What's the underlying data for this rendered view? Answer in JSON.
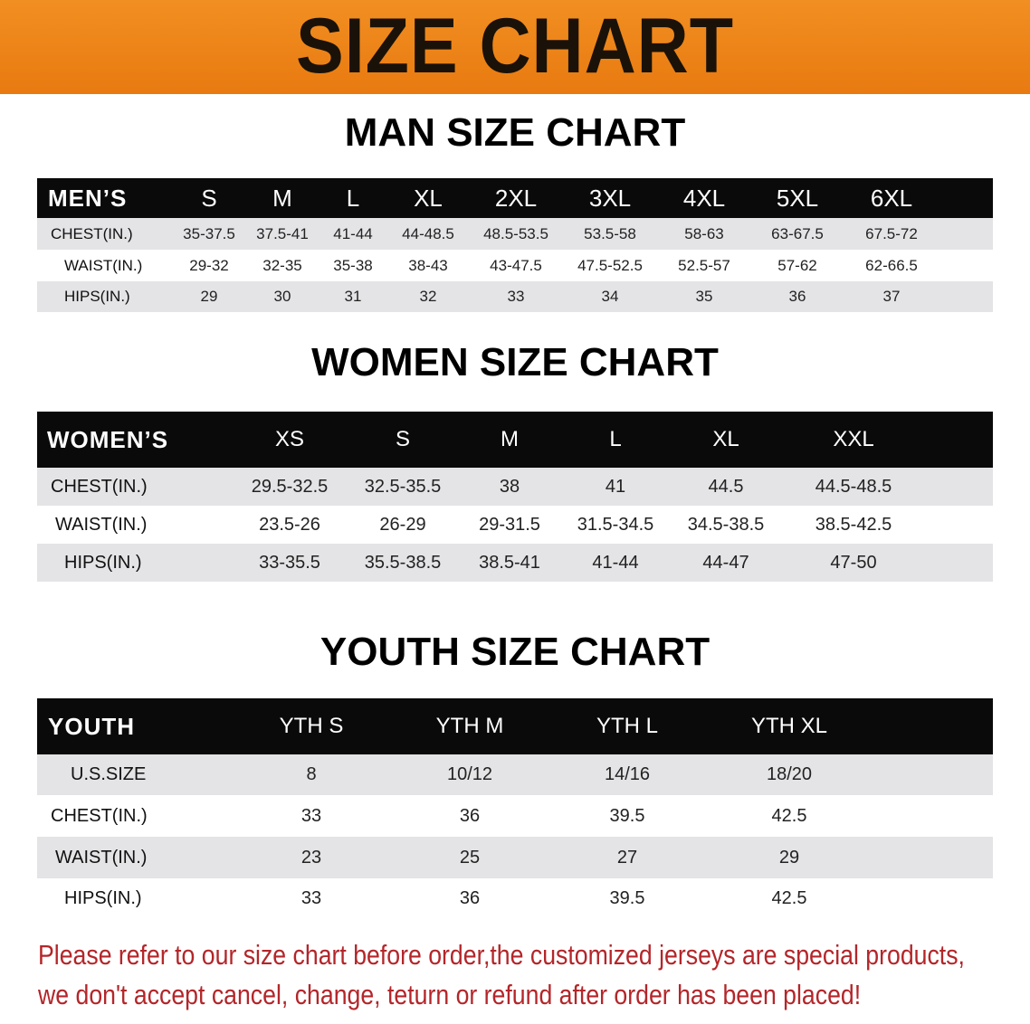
{
  "banner": {
    "title": "SIZE CHART"
  },
  "men": {
    "title": "MAN SIZE CHART",
    "header": [
      "MEN’S",
      "S",
      "M",
      "L",
      "XL",
      "2XL",
      "3XL",
      "4XL",
      "5XL",
      "6XL"
    ],
    "rows": [
      [
        "CHEST(IN.)",
        "35-37.5",
        "37.5-41",
        "41-44",
        "44-48.5",
        "48.5-53.5",
        "53.5-58",
        "58-63",
        "63-67.5",
        "67.5-72"
      ],
      [
        "WAIST(IN.)",
        "29-32",
        "32-35",
        "35-38",
        "38-43",
        "43-47.5",
        "47.5-52.5",
        "52.5-57",
        "57-62",
        "62-66.5"
      ],
      [
        "HIPS(IN.)",
        "29",
        "30",
        "31",
        "32",
        "33",
        "34",
        "35",
        "36",
        "37"
      ]
    ]
  },
  "women": {
    "title": "WOMEN SIZE CHART",
    "header": [
      "WOMEN’S",
      "XS",
      "S",
      "M",
      "L",
      "XL",
      "XXL"
    ],
    "rows": [
      [
        "CHEST(IN.)",
        "29.5-32.5",
        "32.5-35.5",
        "38",
        "41",
        "44.5",
        "44.5-48.5"
      ],
      [
        "WAIST(IN.)",
        "23.5-26",
        "26-29",
        "29-31.5",
        "31.5-34.5",
        "34.5-38.5",
        "38.5-42.5"
      ],
      [
        "HIPS(IN.)",
        "33-35.5",
        "35.5-38.5",
        "38.5-41",
        "41-44",
        "44-47",
        "47-50"
      ]
    ]
  },
  "youth": {
    "title": "YOUTH SIZE CHART",
    "header": [
      "YOUTH",
      "YTH S",
      "YTH M",
      "YTH L",
      "YTH XL"
    ],
    "rows": [
      [
        "U.S.SIZE",
        "8",
        "10/12",
        "14/16",
        "18/20"
      ],
      [
        "CHEST(IN.)",
        "33",
        "36",
        "39.5",
        "42.5"
      ],
      [
        "WAIST(IN.)",
        "23",
        "25",
        "27",
        "29"
      ],
      [
        "HIPS(IN.)",
        "33",
        "36",
        "39.5",
        "42.5"
      ]
    ]
  },
  "notice": {
    "line1": "Please refer to our size chart before order,the customized jerseys are special products,",
    "line2": "we don't accept cancel, change, teturn or refund after order has been placed!"
  },
  "colors": {
    "banner": "#ee8518",
    "header_row": "#0a0a0a",
    "stripe": "#e4e4e6",
    "notice": "#b3262a"
  }
}
